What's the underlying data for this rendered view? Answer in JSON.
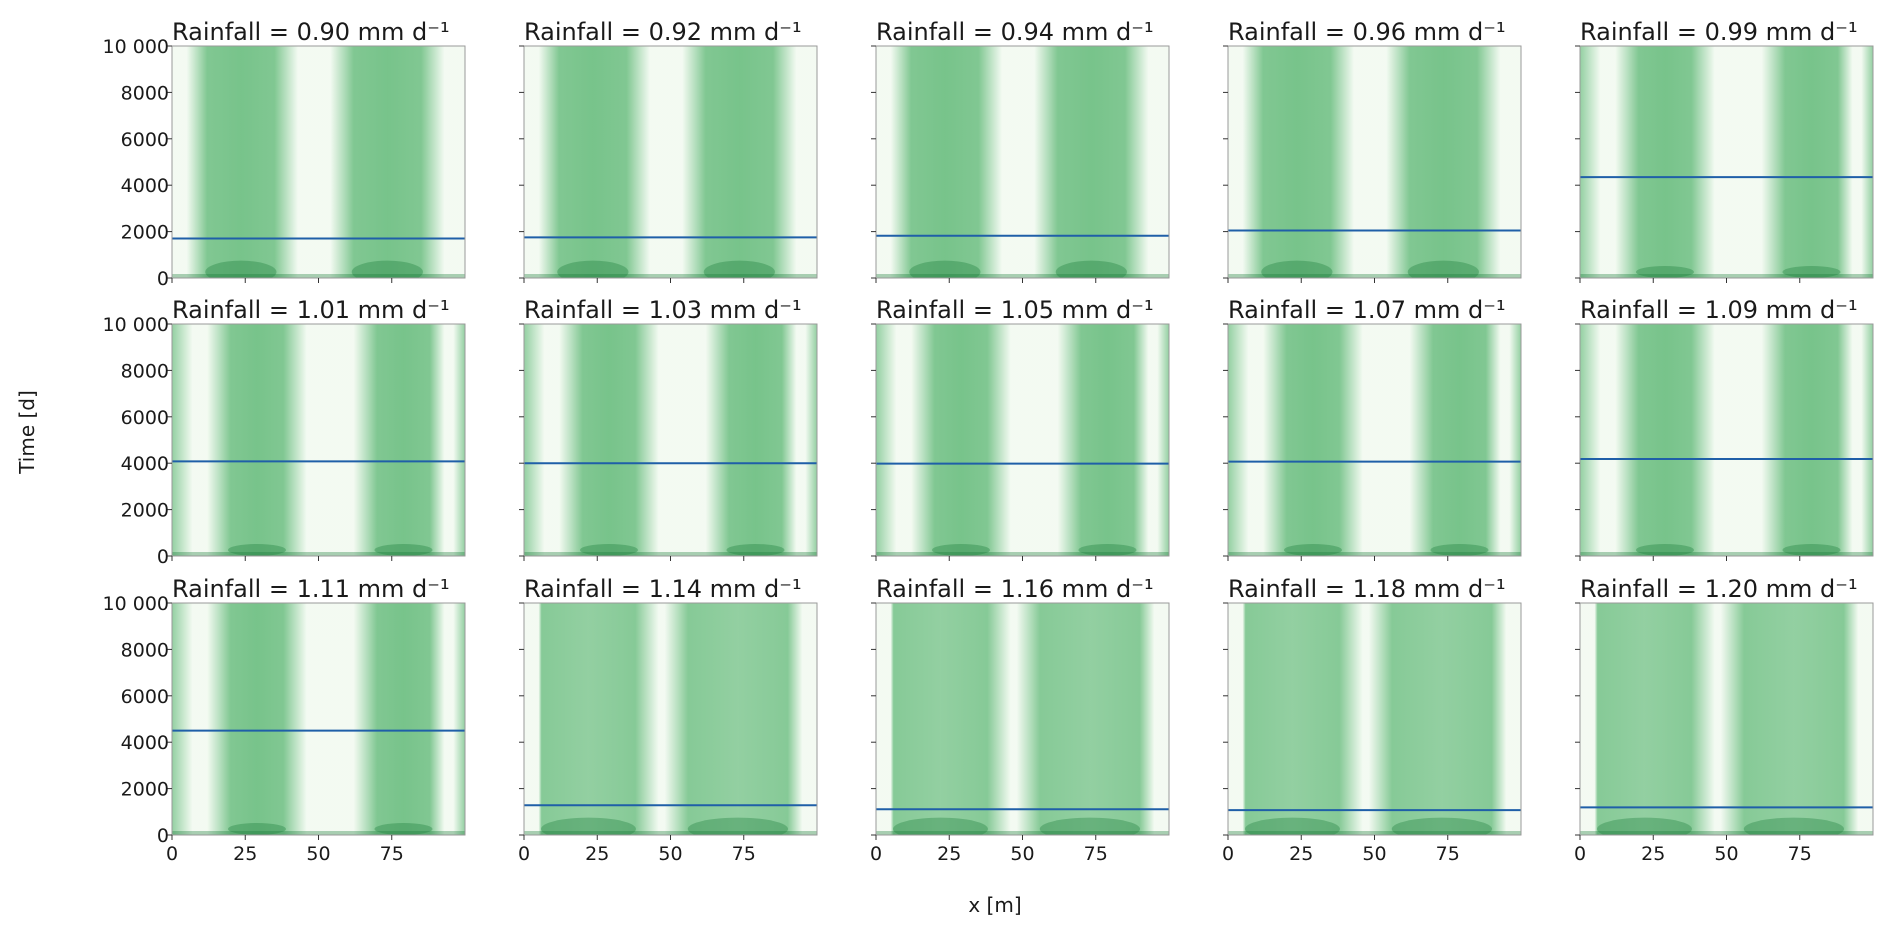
{
  "chart_data": {
    "type": "heatmap",
    "layout": "3x5 small multiples",
    "colormap": "Greens",
    "colors": {
      "low": "#f7fcf5",
      "high": "#00441b",
      "threshold_line": "#1f5fa8",
      "frame": "#999999"
    },
    "xlabel": "x [m]",
    "ylabel": "Time [d]",
    "xlim": [
      0,
      100
    ],
    "ylim": [
      0,
      10000
    ],
    "xticks": [
      "0",
      "25",
      "50",
      "75"
    ],
    "yticks": [
      "0",
      "2000",
      "4000",
      "6000",
      "8000",
      "10 000"
    ],
    "title_prefix": "Rainfall = ",
    "title_unit": "mm d⁻¹",
    "panels": [
      {
        "rainfall": "0.90",
        "line_time": 1700,
        "pattern": "bands"
      },
      {
        "rainfall": "0.92",
        "line_time": 1750,
        "pattern": "bands"
      },
      {
        "rainfall": "0.94",
        "line_time": 1820,
        "pattern": "bands"
      },
      {
        "rainfall": "0.96",
        "line_time": 2050,
        "pattern": "bands"
      },
      {
        "rainfall": "0.99",
        "line_time": 4350,
        "pattern": "splitting"
      },
      {
        "rainfall": "1.01",
        "line_time": 4080,
        "pattern": "splitting"
      },
      {
        "rainfall": "1.03",
        "line_time": 4000,
        "pattern": "splitting"
      },
      {
        "rainfall": "1.05",
        "line_time": 3980,
        "pattern": "splitting"
      },
      {
        "rainfall": "1.07",
        "line_time": 4070,
        "pattern": "splitting"
      },
      {
        "rainfall": "1.09",
        "line_time": 4180,
        "pattern": "splitting"
      },
      {
        "rainfall": "1.11",
        "line_time": 4500,
        "pattern": "splitting"
      },
      {
        "rainfall": "1.14",
        "line_time": 1280,
        "pattern": "wide"
      },
      {
        "rainfall": "1.16",
        "line_time": 1110,
        "pattern": "wide"
      },
      {
        "rainfall": "1.18",
        "line_time": 1070,
        "pattern": "wide"
      },
      {
        "rainfall": "1.20",
        "line_time": 1190,
        "pattern": "wide"
      }
    ]
  }
}
